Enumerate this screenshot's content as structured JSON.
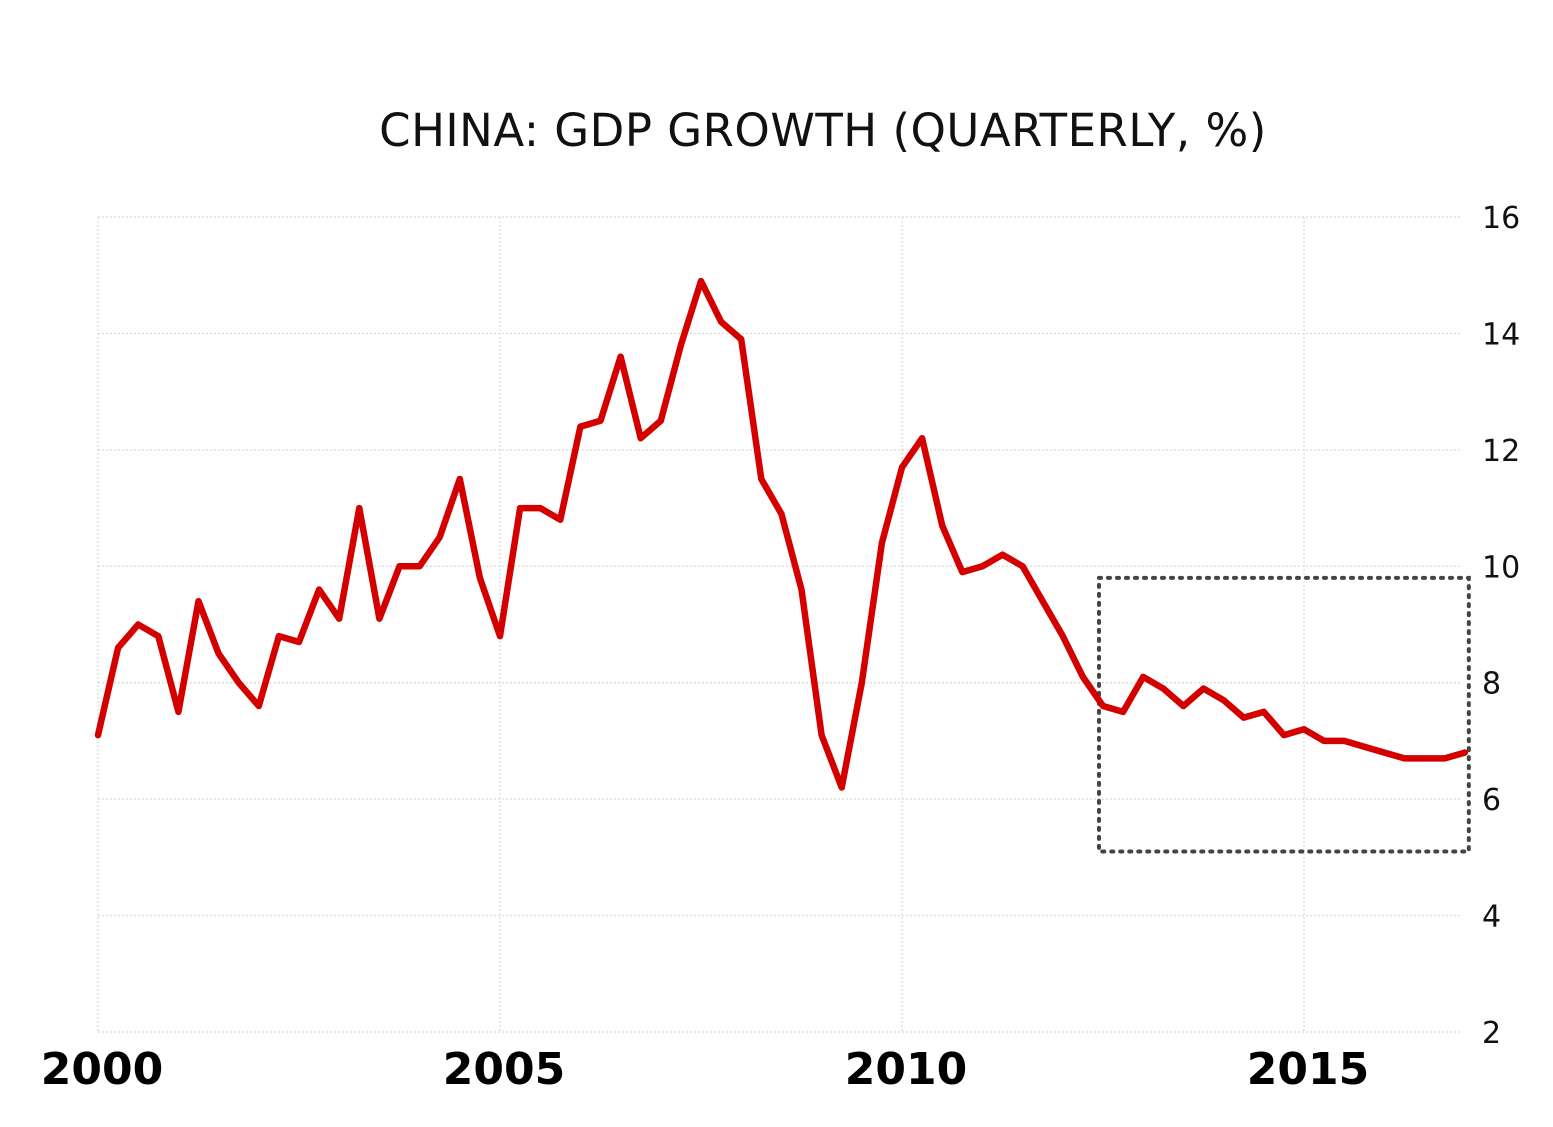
{
  "chart_data": {
    "type": "line",
    "title": "CHINA: GDP GROWTH (QUARTERLY, %)",
    "xlabel": "",
    "ylabel": "",
    "x_ticks": [
      "2000",
      "2005",
      "2010",
      "2015"
    ],
    "y_ticks": [
      "2",
      "4",
      "6",
      "8",
      "10",
      "12",
      "14",
      "16"
    ],
    "ylim": [
      2,
      16
    ],
    "xlim": [
      2000,
      2017.25
    ],
    "grid": true,
    "y_axis_position": "right",
    "series_color": "#d40000",
    "series": [
      {
        "x": [
          2000.0,
          2000.25,
          2000.5,
          2000.75,
          2001.0,
          2001.25,
          2001.5,
          2001.75,
          2002.0,
          2002.25,
          2002.5,
          2002.75,
          2003.0,
          2003.25,
          2003.5,
          2003.75,
          2004.0,
          2004.25,
          2004.5,
          2004.75,
          2005.0,
          2005.25,
          2005.5,
          2005.75,
          2006.0,
          2006.25,
          2006.5,
          2006.75,
          2007.0,
          2007.25,
          2007.5,
          2007.75,
          2008.0,
          2008.25,
          2008.5,
          2008.75,
          2009.0,
          2009.25,
          2009.5,
          2009.75,
          2010.0,
          2010.25,
          2010.5,
          2010.75,
          2011.0,
          2011.25,
          2011.5,
          2011.75,
          2012.0,
          2012.25,
          2012.5,
          2012.75,
          2013.0,
          2013.25,
          2013.5,
          2013.75,
          2014.0,
          2014.25,
          2014.5,
          2014.75,
          2015.0,
          2015.25,
          2015.5,
          2015.75,
          2016.0,
          2016.25,
          2016.5,
          2016.75,
          2017.0
        ],
        "values": [
          7.1,
          8.6,
          9.0,
          8.8,
          7.5,
          9.4,
          8.5,
          8.0,
          7.6,
          8.8,
          8.7,
          9.6,
          9.1,
          11.0,
          9.1,
          10.0,
          10.0,
          10.5,
          11.5,
          9.8,
          8.8,
          11.0,
          11.0,
          10.8,
          12.4,
          12.5,
          13.6,
          12.2,
          12.5,
          13.8,
          14.9,
          14.2,
          13.9,
          11.5,
          10.9,
          9.6,
          7.1,
          6.2,
          8.0,
          10.4,
          11.7,
          12.2,
          10.7,
          9.9,
          10.0,
          10.2,
          10.0,
          9.4,
          8.8,
          8.1,
          7.6,
          7.5,
          8.1,
          7.9,
          7.6,
          7.9,
          7.7,
          7.4,
          7.5,
          7.1,
          7.2,
          7.0,
          7.0,
          6.9,
          6.8,
          6.7,
          6.7,
          6.7,
          6.8
        ]
      }
    ],
    "annotations": [
      {
        "type": "dotted-rectangle",
        "x_range": [
          2012.45,
          2017.05
        ],
        "y_range": [
          5.1,
          9.8
        ],
        "color": "#444444"
      }
    ]
  }
}
